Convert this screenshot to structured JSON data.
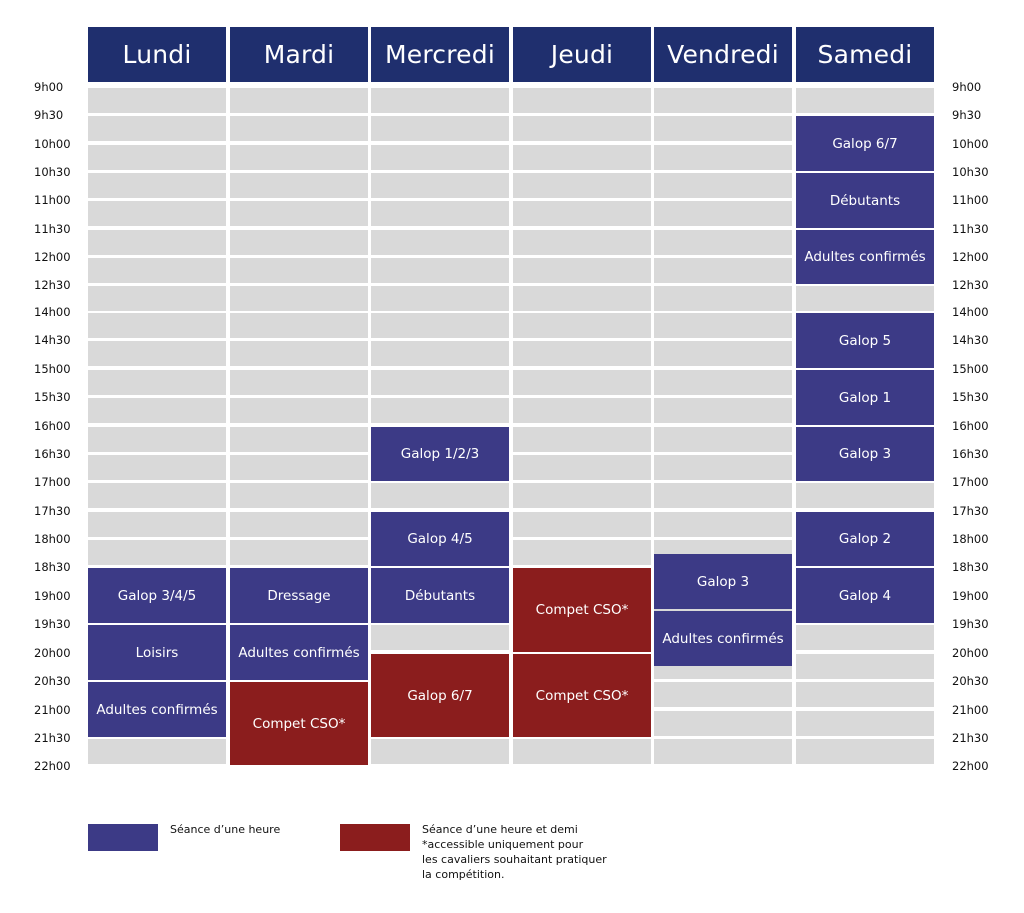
{
  "days": [
    "Lundi",
    "Mardi",
    "Mercredi",
    "Jeudi",
    "Vendredi",
    "Samedi"
  ],
  "times": [
    "9h00",
    "9h30",
    "10h00",
    "10h30",
    "11h00",
    "11h30",
    "12h00",
    "12h30",
    "14h00",
    "14h30",
    "15h00",
    "15h30",
    "16h00",
    "16h30",
    "17h00",
    "17h30",
    "18h00",
    "18h30",
    "19h00",
    "19h30",
    "20h00",
    "20h30",
    "21h00",
    "21h30",
    "22h00"
  ],
  "colors": {
    "header": "#1f2f6e",
    "one_hour": "#3c3a86",
    "one_and_half": "#8b1d1d",
    "empty": "#d9d9d9"
  },
  "sessions": [
    {
      "day": "Samedi",
      "label": "Galop 6/7",
      "start": "9h30",
      "end": "10h30",
      "kind": "one_hour"
    },
    {
      "day": "Samedi",
      "label": "Débutants",
      "start": "10h30",
      "end": "11h30",
      "kind": "one_hour"
    },
    {
      "day": "Samedi",
      "label": "Adultes confirmés",
      "start": "11h30",
      "end": "12h30",
      "kind": "one_hour"
    },
    {
      "day": "Samedi",
      "label": "Galop 5",
      "start": "14h00",
      "end": "15h00",
      "kind": "one_hour"
    },
    {
      "day": "Samedi",
      "label": "Galop 1",
      "start": "15h00",
      "end": "16h00",
      "kind": "one_hour"
    },
    {
      "day": "Samedi",
      "label": "Galop 3",
      "start": "16h00",
      "end": "17h00",
      "kind": "one_hour"
    },
    {
      "day": "Samedi",
      "label": "Galop 2",
      "start": "17h30",
      "end": "18h30",
      "kind": "one_hour"
    },
    {
      "day": "Samedi",
      "label": "Galop 4",
      "start": "18h30",
      "end": "19h30",
      "kind": "one_hour"
    },
    {
      "day": "Mercredi",
      "label": "Galop 1/2/3",
      "start": "16h00",
      "end": "17h00",
      "kind": "one_hour"
    },
    {
      "day": "Mercredi",
      "label": "Galop 4/5",
      "start": "17h30",
      "end": "18h30",
      "kind": "one_hour"
    },
    {
      "day": "Mercredi",
      "label": "Débutants",
      "start": "18h30",
      "end": "19h30",
      "kind": "one_hour"
    },
    {
      "day": "Mercredi",
      "label": "Galop 6/7",
      "start": "20h00",
      "end": "21h30",
      "kind": "one_and_half"
    },
    {
      "day": "Lundi",
      "label": "Galop 3/4/5",
      "start": "18h30",
      "end": "19h30",
      "kind": "one_hour"
    },
    {
      "day": "Lundi",
      "label": "Loisirs",
      "start": "19h30",
      "end": "20h30",
      "kind": "one_hour"
    },
    {
      "day": "Lundi",
      "label": "Adultes confirmés",
      "start": "20h30",
      "end": "21h30",
      "kind": "one_hour"
    },
    {
      "day": "Mardi",
      "label": "Dressage",
      "start": "18h30",
      "end": "19h30",
      "kind": "one_hour"
    },
    {
      "day": "Mardi",
      "label": "Adultes confirmés",
      "start": "19h30",
      "end": "20h30",
      "kind": "one_hour"
    },
    {
      "day": "Mardi",
      "label": "Compet CSO*",
      "start": "20h30",
      "end": "22h00",
      "kind": "one_and_half"
    },
    {
      "day": "Jeudi",
      "label": "Compet CSO*",
      "start": "18h30",
      "end": "20h00",
      "kind": "one_and_half"
    },
    {
      "day": "Jeudi",
      "label": "Compet CSO*",
      "start": "20h00",
      "end": "21h30",
      "kind": "one_and_half"
    },
    {
      "day": "Vendredi",
      "label": "Galop 3",
      "start": "18h15",
      "end": "19h15",
      "kind": "one_hour"
    },
    {
      "day": "Vendredi",
      "label": "Adultes confirmés",
      "start": "19h15",
      "end": "20h15",
      "kind": "one_hour"
    }
  ],
  "legend": [
    {
      "kind": "one_hour",
      "lines": [
        "Séance d’une heure"
      ]
    },
    {
      "kind": "one_and_half",
      "lines": [
        "Séance d’une heure et demi",
        "*accessible uniquement pour",
        "les cavaliers souhaitant pratiquer",
        "la compétition."
      ]
    }
  ]
}
